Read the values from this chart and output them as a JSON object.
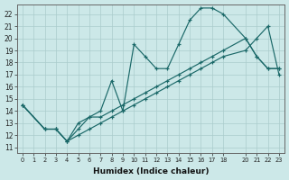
{
  "xlabel": "Humidex (Indice chaleur)",
  "bg_color": "#cce8e8",
  "grid_color": "#aacccc",
  "line_color": "#1a6868",
  "xlim": [
    -0.5,
    23.5
  ],
  "ylim": [
    10.5,
    22.8
  ],
  "xtick_vals": [
    0,
    1,
    2,
    3,
    4,
    5,
    6,
    7,
    8,
    9,
    10,
    11,
    12,
    13,
    14,
    15,
    16,
    17,
    18,
    20,
    21,
    22,
    23
  ],
  "ytick_vals": [
    11,
    12,
    13,
    14,
    15,
    16,
    17,
    18,
    19,
    20,
    21,
    22
  ],
  "line1_x": [
    0,
    2,
    3,
    4,
    5,
    6,
    7,
    8,
    9,
    10,
    11,
    12,
    13,
    14,
    15,
    16,
    17,
    18,
    20,
    21,
    22,
    23
  ],
  "line1_y": [
    14.5,
    12.5,
    12.5,
    11.5,
    12.5,
    13.5,
    14.0,
    16.5,
    14.0,
    19.5,
    18.5,
    17.5,
    17.5,
    19.5,
    21.5,
    22.5,
    22.5,
    22.0,
    20.0,
    18.5,
    17.5,
    17.5
  ],
  "line2_x": [
    0,
    2,
    3,
    4,
    5,
    6,
    7,
    8,
    9,
    10,
    11,
    12,
    13,
    14,
    15,
    16,
    17,
    18,
    20,
    21,
    22,
    23
  ],
  "line2_y": [
    14.5,
    12.5,
    12.5,
    11.5,
    13.0,
    13.5,
    13.5,
    14.0,
    14.5,
    15.0,
    15.5,
    16.0,
    16.5,
    17.0,
    17.5,
    18.0,
    18.5,
    19.0,
    20.0,
    18.5,
    17.5,
    17.5
  ],
  "line3_x": [
    0,
    2,
    3,
    4,
    5,
    6,
    7,
    8,
    9,
    10,
    11,
    12,
    13,
    14,
    15,
    16,
    17,
    18,
    20,
    21,
    22,
    23
  ],
  "line3_y": [
    14.5,
    12.5,
    12.5,
    11.5,
    12.0,
    12.5,
    13.0,
    13.5,
    14.0,
    14.5,
    15.0,
    15.5,
    16.0,
    16.5,
    17.0,
    17.5,
    18.0,
    18.5,
    19.0,
    20.0,
    21.0,
    17.0
  ]
}
